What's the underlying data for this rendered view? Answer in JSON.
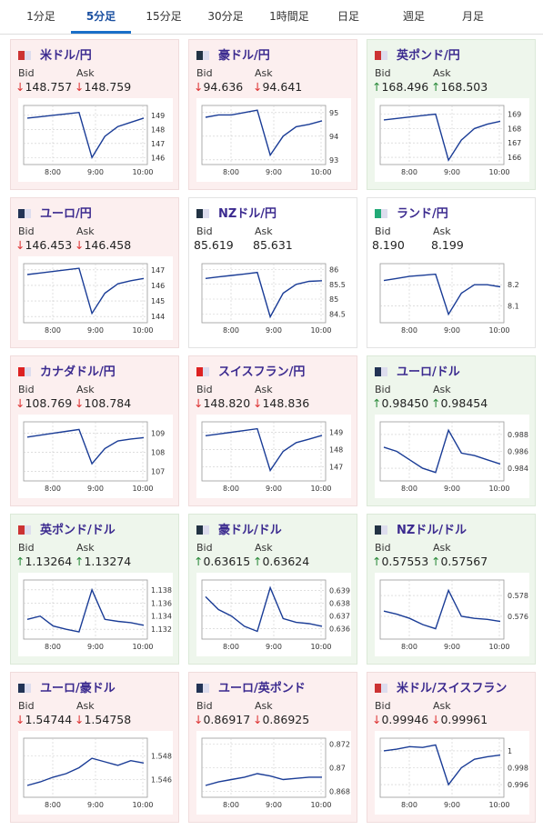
{
  "tabs": [
    "1分足",
    "5分足",
    "15分足",
    "30分足",
    "1時間足",
    "日足",
    "週足",
    "月足"
  ],
  "active_tab": 1,
  "bid_label": "Bid",
  "ask_label": "Ask",
  "x_labels": [
    "8:00",
    "9:00",
    "10:00"
  ],
  "cards": [
    {
      "name": "米ドル/円",
      "arrow": "↓",
      "bid": "148.757",
      "ask": "148.759",
      "ylim": [
        145.5,
        149.7
      ],
      "yticks": [
        149,
        148,
        147,
        146
      ],
      "prices": [
        148.8,
        148.9,
        149.0,
        149.1,
        149.2,
        146.0,
        147.5,
        148.2,
        148.5,
        148.8
      ]
    },
    {
      "name": "豪ドル/円",
      "arrow": "↓",
      "bid": "94.636",
      "ask": "94.641",
      "ylim": [
        92.8,
        95.3
      ],
      "yticks": [
        95,
        94,
        93
      ],
      "prices": [
        94.8,
        94.9,
        94.9,
        95.0,
        95.1,
        93.2,
        94.0,
        94.4,
        94.5,
        94.65
      ]
    },
    {
      "name": "英ポンド/円",
      "arrow": "↑",
      "bid": "168.496",
      "ask": "168.503",
      "ylim": [
        165.5,
        169.6
      ],
      "yticks": [
        169,
        168,
        167,
        166
      ],
      "prices": [
        168.6,
        168.7,
        168.8,
        168.9,
        169.0,
        165.8,
        167.2,
        168.0,
        168.3,
        168.5
      ]
    },
    {
      "name": "ユーロ/円",
      "arrow": "↓",
      "bid": "146.453",
      "ask": "146.458",
      "ylim": [
        143.6,
        147.4
      ],
      "yticks": [
        147,
        146,
        145,
        144
      ],
      "prices": [
        146.7,
        146.8,
        146.9,
        147.0,
        147.1,
        144.2,
        145.5,
        146.1,
        146.3,
        146.45
      ]
    },
    {
      "name": "NZドル/円",
      "bid": "85.619",
      "ask": "85.631",
      "ylim": [
        84.2,
        86.2
      ],
      "yticks": [
        86,
        85.5,
        85,
        84.5
      ],
      "prices": [
        85.7,
        85.75,
        85.8,
        85.85,
        85.9,
        84.4,
        85.2,
        85.5,
        85.6,
        85.62
      ]
    },
    {
      "name": "ランド/円",
      "bid": "8.190",
      "ask": "8.199",
      "ylim": [
        8.02,
        8.3
      ],
      "yticks": [
        8.2,
        8.1
      ],
      "prices": [
        8.22,
        8.23,
        8.24,
        8.245,
        8.25,
        8.06,
        8.16,
        8.2,
        8.2,
        8.19
      ]
    },
    {
      "name": "カナダドル/円",
      "arrow": "↓",
      "bid": "108.769",
      "ask": "108.784",
      "ylim": [
        106.5,
        109.6
      ],
      "yticks": [
        109,
        108,
        107
      ],
      "prices": [
        108.8,
        108.9,
        109.0,
        109.1,
        109.2,
        107.4,
        108.2,
        108.6,
        108.7,
        108.77
      ]
    },
    {
      "name": "スイスフラン/円",
      "arrow": "↓",
      "bid": "148.820",
      "ask": "148.836",
      "ylim": [
        146.2,
        149.6
      ],
      "yticks": [
        149,
        148,
        147
      ],
      "prices": [
        148.8,
        148.9,
        149.0,
        149.1,
        149.2,
        146.8,
        147.9,
        148.4,
        148.6,
        148.82
      ]
    },
    {
      "name": "ユーロ/ドル",
      "arrow": "↑",
      "bid": "0.98450",
      "ask": "0.98454",
      "ylim": [
        0.9825,
        0.9895
      ],
      "yticks": [
        0.988,
        0.986,
        0.984
      ],
      "prices": [
        0.9865,
        0.986,
        0.985,
        0.984,
        0.9835,
        0.9885,
        0.9858,
        0.9855,
        0.985,
        0.9845
      ]
    },
    {
      "name": "英ポンド/ドル",
      "arrow": "↑",
      "bid": "1.13264",
      "ask": "1.13274",
      "ylim": [
        1.1305,
        1.1395
      ],
      "yticks": [
        1.138,
        1.136,
        1.134,
        1.132
      ],
      "prices": [
        1.1335,
        1.134,
        1.1325,
        1.132,
        1.1316,
        1.138,
        1.1335,
        1.1332,
        1.133,
        1.1326
      ]
    },
    {
      "name": "豪ドル/ドル",
      "arrow": "↑",
      "bid": "0.63615",
      "ask": "0.63624",
      "ylim": [
        0.6352,
        0.6398
      ],
      "yticks": [
        0.639,
        0.638,
        0.637,
        0.636
      ],
      "prices": [
        0.6385,
        0.6375,
        0.637,
        0.6362,
        0.6358,
        0.6392,
        0.6368,
        0.6365,
        0.6364,
        0.6362
      ]
    },
    {
      "name": "NZドル/ドル",
      "arrow": "↑",
      "bid": "0.57553",
      "ask": "0.57567",
      "ylim": [
        0.5738,
        0.5795
      ],
      "yticks": [
        0.578,
        0.576
      ],
      "prices": [
        0.5765,
        0.5762,
        0.5758,
        0.5752,
        0.5748,
        0.5785,
        0.576,
        0.5758,
        0.5757,
        0.5755
      ]
    },
    {
      "name": "ユーロ/豪ドル",
      "arrow": "↓",
      "bid": "1.54744",
      "ask": "1.54758",
      "ylim": [
        1.5445,
        1.5495
      ],
      "yticks": [
        1.548,
        1.546
      ],
      "prices": [
        1.5455,
        1.5458,
        1.5462,
        1.5465,
        1.547,
        1.5478,
        1.5475,
        1.5472,
        1.5476,
        1.5474
      ]
    },
    {
      "name": "ユーロ/英ポンド",
      "arrow": "↓",
      "bid": "0.86917",
      "ask": "0.86925",
      "ylim": [
        0.8675,
        0.8725
      ],
      "yticks": [
        0.872,
        0.87,
        0.868
      ],
      "prices": [
        0.8685,
        0.8688,
        0.869,
        0.8692,
        0.8695,
        0.8693,
        0.869,
        0.8691,
        0.8692,
        0.8692
      ]
    },
    {
      "name": "米ドル/スイスフラン",
      "arrow": "↓",
      "bid": "0.99946",
      "ask": "0.99961",
      "ylim": [
        0.9945,
        1.0015
      ],
      "yticks": [
        1,
        0.998,
        0.996
      ],
      "prices": [
        1.0,
        1.0002,
        1.0005,
        1.0004,
        1.0007,
        0.996,
        0.998,
        0.999,
        0.9993,
        0.9995
      ]
    }
  ]
}
